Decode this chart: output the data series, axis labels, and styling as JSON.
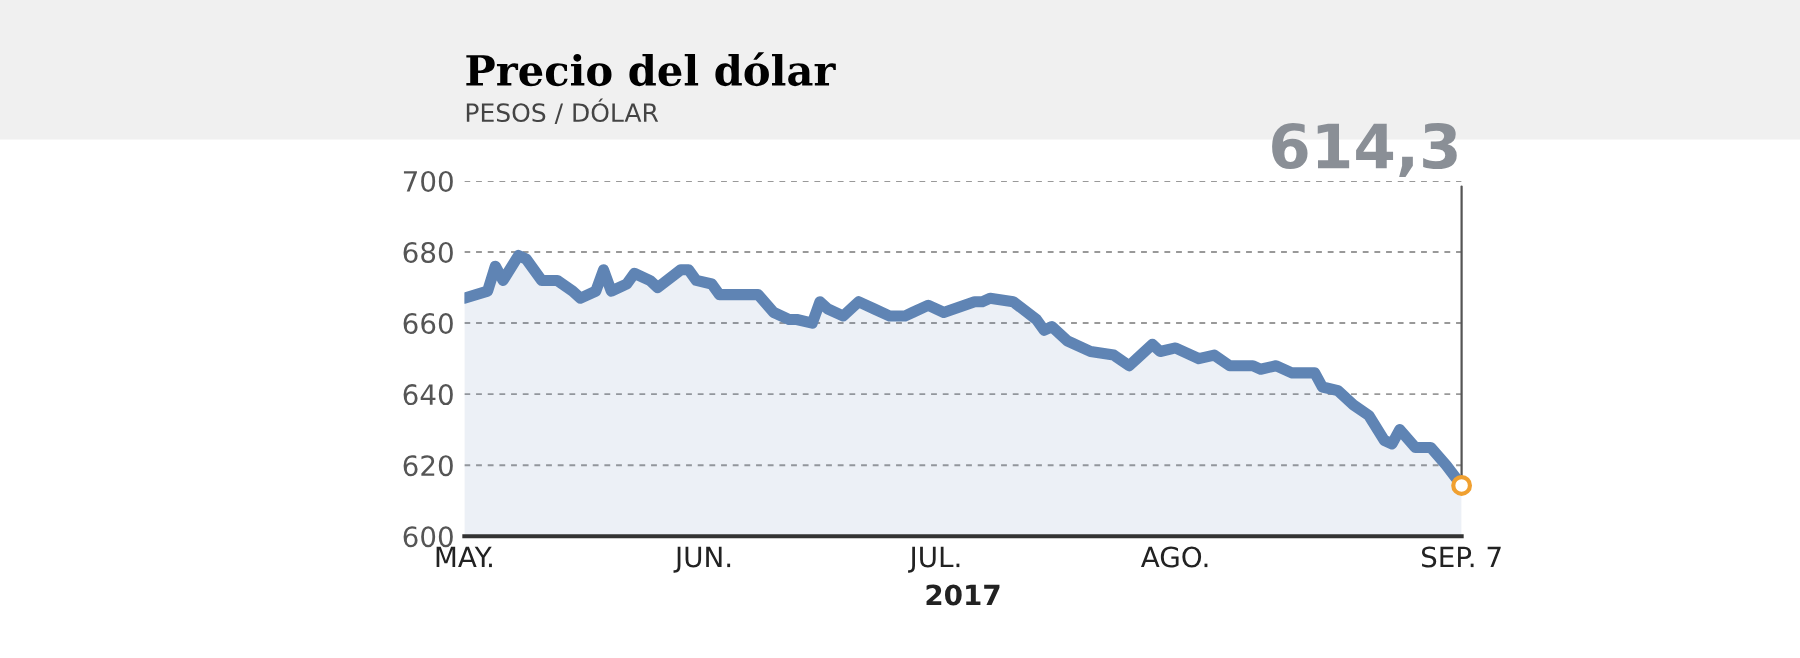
{
  "chart_data": {
    "type": "area",
    "title": "Precio del dólar",
    "subtitle": "PESOS / DÓLAR",
    "xlabel": "2017",
    "x": [
      "2017-05-01",
      "2017-05-04",
      "2017-05-05",
      "2017-05-06",
      "2017-05-08",
      "2017-05-09",
      "2017-05-11",
      "2017-05-13",
      "2017-05-15",
      "2017-05-16",
      "2017-05-18",
      "2017-05-19",
      "2017-05-20",
      "2017-05-22",
      "2017-05-23",
      "2017-05-25",
      "2017-05-26",
      "2017-05-29",
      "2017-05-30",
      "2017-05-31",
      "2017-06-02",
      "2017-06-03",
      "2017-06-08",
      "2017-06-10",
      "2017-06-12",
      "2017-06-13",
      "2017-06-15",
      "2017-06-16",
      "2017-06-17",
      "2017-06-19",
      "2017-06-21",
      "2017-06-23",
      "2017-06-25",
      "2017-06-27",
      "2017-06-28",
      "2017-06-30",
      "2017-07-02",
      "2017-07-06",
      "2017-07-07",
      "2017-07-08",
      "2017-07-11",
      "2017-07-14",
      "2017-07-15",
      "2017-07-16",
      "2017-07-18",
      "2017-07-21",
      "2017-07-24",
      "2017-07-26",
      "2017-07-27",
      "2017-07-29",
      "2017-07-30",
      "2017-08-01",
      "2017-08-04",
      "2017-08-06",
      "2017-08-08",
      "2017-08-11",
      "2017-08-12",
      "2017-08-14",
      "2017-08-16",
      "2017-08-19",
      "2017-08-20",
      "2017-08-22",
      "2017-08-24",
      "2017-08-26",
      "2017-08-28",
      "2017-08-29",
      "2017-08-30",
      "2017-09-01",
      "2017-09-03",
      "2017-09-05",
      "2017-09-07"
    ],
    "series": [
      {
        "color": "#5f84b4",
        "values": [
          667,
          669,
          676,
          672,
          679,
          678,
          672,
          672,
          669,
          667,
          669,
          675,
          669,
          671,
          674,
          672,
          670,
          675,
          675,
          672,
          671,
          668,
          668,
          663,
          661,
          661,
          660,
          666,
          664,
          662,
          666,
          664,
          662,
          662,
          663,
          665,
          663,
          666,
          666,
          667,
          666,
          661,
          658,
          659,
          655,
          652,
          651,
          648,
          650,
          654,
          652,
          653,
          650,
          651,
          648,
          648,
          647,
          648,
          646,
          646,
          642,
          641,
          637,
          634,
          627,
          626,
          630,
          625,
          625,
          620,
          614.3
        ]
      }
    ],
    "xlim": [
      "2017-05-01",
      "2017-09-07"
    ],
    "xticks": [
      {
        "value": "2017-05-01",
        "label": "MAY."
      },
      {
        "value": "2017-06-01",
        "label": "JUN."
      },
      {
        "value": "2017-07-01",
        "label": "JUL."
      },
      {
        "value": "2017-08-01",
        "label": "AGO."
      },
      {
        "value": "2017-09-07",
        "label": "SEP. 7"
      }
    ],
    "ylim": [
      600,
      700
    ],
    "yticks": [
      600,
      620,
      640,
      660,
      680,
      700
    ],
    "grid": "y",
    "annotations": [
      {
        "text": "614,3",
        "x": "2017-09-07",
        "y": 614.3
      }
    ]
  }
}
